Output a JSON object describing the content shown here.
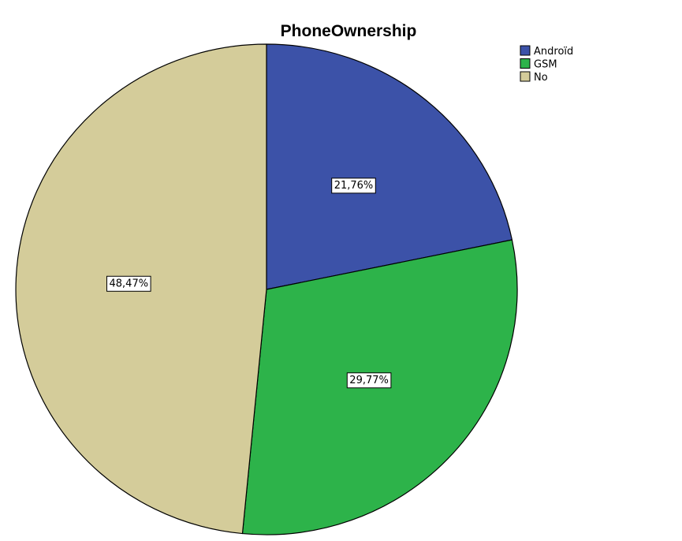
{
  "chart_data": {
    "type": "pie",
    "title": "PhoneOwnership",
    "legend_position": "top-right",
    "start_angle_deg": 0,
    "direction": "clockwise",
    "slices": [
      {
        "label": "Androïd",
        "value": 21.76,
        "value_label": "21,76%",
        "color": "#3c52a8"
      },
      {
        "label": "GSM",
        "value": 29.77,
        "value_label": "29,77%",
        "color": "#2db34a"
      },
      {
        "label": "No",
        "value": 48.47,
        "value_label": "48,47%",
        "color": "#d4cc9a"
      }
    ]
  }
}
